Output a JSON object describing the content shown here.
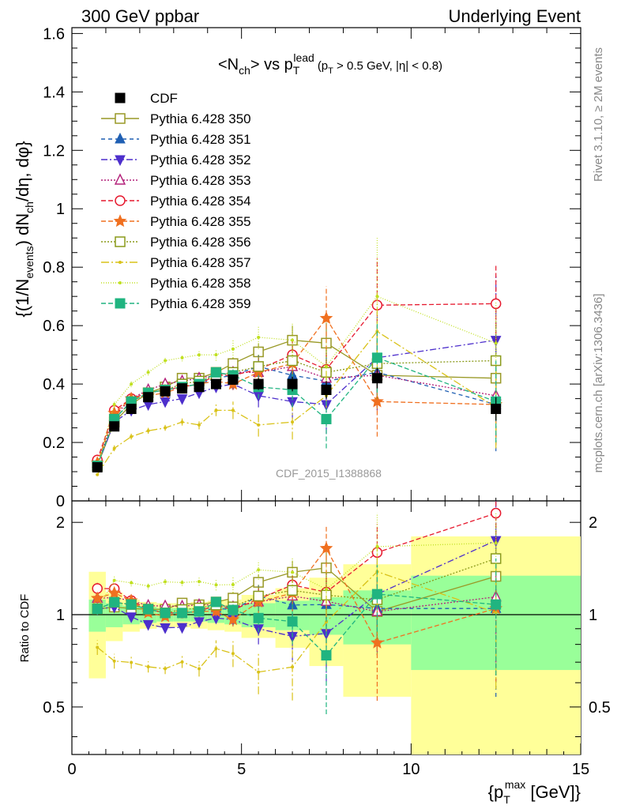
{
  "header": {
    "left": "300 GeV ppbar",
    "right": "Underlying Event"
  },
  "side_labels": {
    "rivet": "Rivet 3.1.10, ≥ 2M events",
    "mcplots": "mcplots.cern.ch [arXiv:1306.3436]"
  },
  "chart_data": {
    "type": "line",
    "title": "<Nch> vs pT lead (pT > 0.5 GeV, |η| < 0.8)",
    "watermark": "CDF_2015_I1388868",
    "xlabel": "{pT max [GeV]}",
    "ylabel": "{(1/Nevents) dNch/dη, dφ}",
    "ratio_ylabel": "Ratio to CDF",
    "xlim": [
      0,
      15
    ],
    "ylim": [
      0,
      1.62
    ],
    "ratio_ylim": [
      0.35,
      2.35
    ],
    "ratio_log": true,
    "xticks": [
      "0",
      "5",
      "10",
      "15"
    ],
    "yticks": [
      "0",
      "0.2",
      "0.4",
      "0.6",
      "0.8",
      "1",
      "1.2",
      "1.4",
      "1.6"
    ],
    "ratio_yticks": [
      "0.5",
      "1",
      "2"
    ],
    "legend_position": "top-left",
    "x": [
      0.75,
      1.25,
      1.75,
      2.25,
      2.75,
      3.25,
      3.75,
      4.25,
      4.75,
      5.5,
      6.5,
      7.5,
      9.0,
      12.5
    ],
    "data": {
      "name": "CDF",
      "color": "#000000",
      "values": [
        0.115,
        0.255,
        0.315,
        0.355,
        0.375,
        0.385,
        0.39,
        0.4,
        0.415,
        0.4,
        0.4,
        0.38,
        0.42,
        0.315
      ],
      "errors": [
        0.008,
        0.01,
        0.01,
        0.01,
        0.01,
        0.01,
        0.01,
        0.012,
        0.014,
        0.02,
        0.025,
        0.03,
        0.035,
        0.04
      ]
    },
    "band_edges": [
      0.5,
      1.0,
      1.5,
      2.0,
      2.5,
      3.0,
      3.5,
      4.0,
      4.5,
      5.0,
      6.0,
      7.0,
      8.0,
      10.0,
      15.0
    ],
    "band_stat": [
      0.12,
      0.09,
      0.07,
      0.06,
      0.05,
      0.05,
      0.05,
      0.06,
      0.07,
      0.09,
      0.11,
      0.14,
      0.2,
      0.34
    ],
    "band_total": [
      0.38,
      0.18,
      0.12,
      0.1,
      0.09,
      0.09,
      0.1,
      0.11,
      0.12,
      0.16,
      0.22,
      0.32,
      0.46,
      0.8
    ],
    "series": [
      {
        "name": "Pythia 6.428 350",
        "color": "#999926",
        "marker": "square-open",
        "dash": "",
        "values": [
          0.12,
          0.27,
          0.33,
          0.37,
          0.39,
          0.42,
          0.42,
          0.44,
          0.47,
          0.51,
          0.55,
          0.54,
          0.43,
          0.42
        ],
        "errors": [
          0.005,
          0.01,
          0.01,
          0.01,
          0.01,
          0.01,
          0.01,
          0.015,
          0.02,
          0.03,
          0.05,
          0.07,
          0.12,
          0.1
        ]
      },
      {
        "name": "Pythia 6.428 351",
        "color": "#1f5fb3",
        "marker": "triangle-up",
        "dash": "5,4",
        "values": [
          0.12,
          0.28,
          0.34,
          0.37,
          0.38,
          0.39,
          0.4,
          0.42,
          0.43,
          0.46,
          0.43,
          0.41,
          0.44,
          0.33
        ],
        "errors": [
          0.005,
          0.01,
          0.01,
          0.01,
          0.01,
          0.01,
          0.015,
          0.015,
          0.02,
          0.04,
          0.06,
          0.08,
          0.12,
          0.16
        ]
      },
      {
        "name": "Pythia 6.428 352",
        "color": "#4d2fcc",
        "marker": "triangle-down",
        "dash": "8,3,2,3",
        "values": [
          0.12,
          0.27,
          0.31,
          0.33,
          0.34,
          0.35,
          0.37,
          0.39,
          0.4,
          0.36,
          0.34,
          0.33,
          0.49,
          0.55
        ],
        "errors": [
          0.005,
          0.01,
          0.01,
          0.01,
          0.01,
          0.01,
          0.015,
          0.015,
          0.02,
          0.04,
          0.06,
          0.1,
          0.14,
          0.22
        ]
      },
      {
        "name": "Pythia 6.428 353",
        "color": "#b3207a",
        "marker": "triangle-up-open",
        "dash": "2,2",
        "values": [
          0.13,
          0.29,
          0.35,
          0.38,
          0.4,
          0.41,
          0.42,
          0.43,
          0.44,
          0.44,
          0.46,
          0.42,
          0.43,
          0.36
        ],
        "errors": [
          0.005,
          0.01,
          0.01,
          0.01,
          0.01,
          0.01,
          0.015,
          0.015,
          0.02,
          0.04,
          0.06,
          0.08,
          0.12,
          0.14
        ]
      },
      {
        "name": "Pythia 6.428 354",
        "color": "#e6192e",
        "marker": "circle-open",
        "dash": "6,3",
        "values": [
          0.14,
          0.31,
          0.35,
          0.37,
          0.38,
          0.39,
          0.4,
          0.43,
          0.43,
          0.45,
          0.5,
          0.45,
          0.67,
          0.675
        ],
        "errors": [
          0.006,
          0.01,
          0.01,
          0.01,
          0.01,
          0.01,
          0.015,
          0.015,
          0.02,
          0.04,
          0.06,
          0.08,
          0.16,
          0.13
        ]
      },
      {
        "name": "Pythia 6.428 355",
        "color": "#f07020",
        "marker": "star-open",
        "dash": "6,3",
        "values": [
          0.13,
          0.3,
          0.35,
          0.36,
          0.37,
          0.39,
          0.4,
          0.41,
          0.4,
          0.44,
          0.47,
          0.625,
          0.34,
          0.33
        ],
        "errors": [
          0.006,
          0.01,
          0.01,
          0.01,
          0.01,
          0.01,
          0.015,
          0.015,
          0.02,
          0.04,
          0.06,
          0.11,
          0.12,
          0.14
        ]
      },
      {
        "name": "Pythia 6.428 356",
        "color": "#8a9a1a",
        "marker": "square-open",
        "dash": "2,2",
        "values": [
          0.12,
          0.28,
          0.34,
          0.37,
          0.38,
          0.4,
          0.41,
          0.43,
          0.44,
          0.46,
          0.48,
          0.44,
          0.47,
          0.48
        ],
        "errors": [
          0.005,
          0.01,
          0.01,
          0.01,
          0.01,
          0.01,
          0.015,
          0.015,
          0.02,
          0.04,
          0.06,
          0.08,
          0.12,
          0.14
        ]
      },
      {
        "name": "Pythia 6.428 357",
        "color": "#d9c219",
        "marker": "dot",
        "dash": "10,3,2,3",
        "values": [
          0.09,
          0.18,
          0.22,
          0.24,
          0.25,
          0.27,
          0.26,
          0.31,
          0.31,
          0.26,
          0.27,
          0.36,
          0.58,
          0.32
        ],
        "errors": [
          0.005,
          0.01,
          0.01,
          0.01,
          0.01,
          0.012,
          0.015,
          0.02,
          0.03,
          0.04,
          0.06,
          0.09,
          0.14,
          0.14
        ]
      },
      {
        "name": "Pythia 6.428 358",
        "color": "#c0e020",
        "marker": "dot",
        "dash": "1,2",
        "values": [
          0.12,
          0.33,
          0.4,
          0.44,
          0.48,
          0.49,
          0.5,
          0.5,
          0.52,
          0.56,
          0.55,
          0.46,
          0.7,
          0.54
        ],
        "errors": [
          0.005,
          0.01,
          0.01,
          0.01,
          0.01,
          0.012,
          0.015,
          0.02,
          0.03,
          0.04,
          0.06,
          0.09,
          0.2,
          0.14
        ]
      },
      {
        "name": "Pythia 6.428 359",
        "color": "#20b480",
        "marker": "square",
        "dash": "6,3",
        "values": [
          0.12,
          0.28,
          0.34,
          0.37,
          0.38,
          0.39,
          0.4,
          0.44,
          0.43,
          0.39,
          0.38,
          0.28,
          0.49,
          0.34
        ],
        "errors": [
          0.005,
          0.01,
          0.01,
          0.01,
          0.01,
          0.01,
          0.015,
          0.015,
          0.02,
          0.04,
          0.06,
          0.1,
          0.12,
          0.14
        ]
      }
    ]
  }
}
